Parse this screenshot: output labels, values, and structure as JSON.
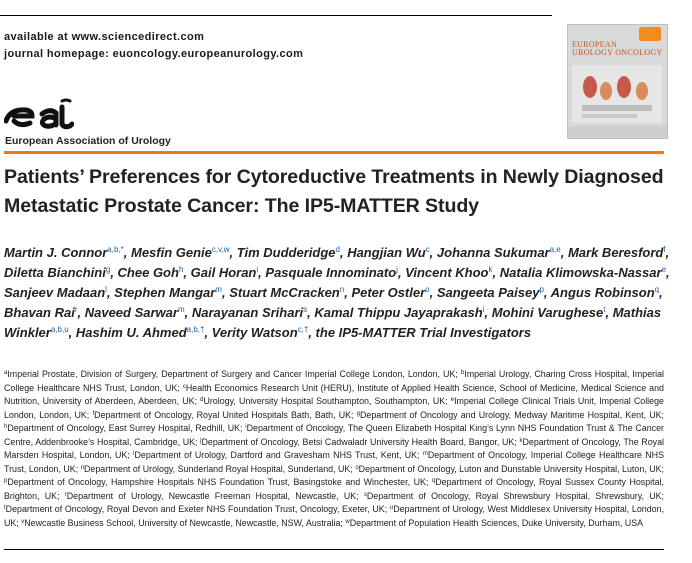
{
  "header": {
    "available": "available at www.sciencedirect.com",
    "homepage": "journal homepage: euoncology.europeanurology.com"
  },
  "society": {
    "logo_icon": "eau-logo",
    "name": "European Association of Urology"
  },
  "cover": {
    "title_line1": "EUROPEAN",
    "title_line2": "UROLOGY ONCOLOGY"
  },
  "title": "Patients’ Preferences for Cytoreductive Treatments in Newly Diagnosed Metastatic Prostate Cancer: The IP5-MATTER Study",
  "authors": [
    {
      "name": "Martin J. Connor",
      "sup": "a,b,*",
      "sep": ", "
    },
    {
      "name": "Mesfin Genie",
      "sup": "c,v,w",
      "sep": ", "
    },
    {
      "name": "Tim Dudderidge",
      "sup": "d",
      "sep": ", "
    },
    {
      "name": "Hangjian Wu",
      "sup": "c",
      "sep": ", "
    },
    {
      "name": "Johanna Sukumar",
      "sup": "a,e",
      "sep": ", "
    },
    {
      "name": "Mark Beresford",
      "sup": "f",
      "sep": ", "
    },
    {
      "name": "Diletta Bianchini",
      "sup": "g",
      "sep": ", "
    },
    {
      "name": "Chee Goh",
      "sup": "h",
      "sep": ", "
    },
    {
      "name": "Gail Horan",
      "sup": "i",
      "sep": ", "
    },
    {
      "name": "Pasquale Innominato",
      "sup": "j",
      "sep": ", "
    },
    {
      "name": "Vincent Khoo",
      "sup": "k",
      "sep": ", "
    },
    {
      "name": "Natalia Klimowska-Nassar",
      "sup": "e",
      "sep": ", "
    },
    {
      "name": "Sanjeev Madaan",
      "sup": "l",
      "sep": ", "
    },
    {
      "name": "Stephen Mangar",
      "sup": "m",
      "sep": ", "
    },
    {
      "name": "Stuart McCracken",
      "sup": "n",
      "sep": ", "
    },
    {
      "name": "Peter Ostler",
      "sup": "o",
      "sep": ", "
    },
    {
      "name": "Sangeeta Paisey",
      "sup": "p",
      "sep": ", "
    },
    {
      "name": "Angus Robinson",
      "sup": "q",
      "sep": ", "
    },
    {
      "name": "Bhavan Rai",
      "sup": "r",
      "sep": ", "
    },
    {
      "name": "Naveed Sarwar",
      "sup": "m",
      "sep": ", "
    },
    {
      "name": "Narayanan Srihari",
      "sup": "s",
      "sep": ", "
    },
    {
      "name": "Kamal Thippu Jayaprakash",
      "sup": "i",
      "sep": ", "
    },
    {
      "name": "Mohini Varughese",
      "sup": "t",
      "sep": ", "
    },
    {
      "name": "Mathias Winkler",
      "sup": "a,b,u",
      "sep": ", "
    },
    {
      "name": "Hashim U. Ahmed",
      "sup": "a,b,†",
      "sep": ", "
    },
    {
      "name": "Verity Watson",
      "sup": "c,†",
      "sep": ", "
    },
    {
      "name": "the IP5-MATTER Trial Investigators",
      "sup": "",
      "sep": ""
    }
  ],
  "affiliations": [
    {
      "sup": "a",
      "text": "Imperial Prostate, Division of Surgery, Department of Surgery and Cancer Imperial College London, London, UK; "
    },
    {
      "sup": "b",
      "text": "Imperial Urology, Charing Cross Hospital, Imperial College Healthcare NHS Trust, London, UK; "
    },
    {
      "sup": "c",
      "text": "Health Economics Research Unit (HERU), Institute of Applied Health Science, School of Medicine, Medical Science and Nutrition, University of Aberdeen, Aberdeen, UK; "
    },
    {
      "sup": "d",
      "text": "Urology, University Hospital Southampton, Southampton, UK; "
    },
    {
      "sup": "e",
      "text": "Imperial College Clinical Trials Unit, Imperial College London, London, UK; "
    },
    {
      "sup": "f",
      "text": "Department of Oncology, Royal United Hospitals Bath, Bath, UK; "
    },
    {
      "sup": "g",
      "text": "Department of Oncology and Urology, Medway Maritime Hospital, Kent, UK; "
    },
    {
      "sup": "h",
      "text": "Department of Oncology, East Surrey Hospital, Redhill, UK; "
    },
    {
      "sup": "i",
      "text": "Department of Oncology, The Queen Elizabeth Hospital King’s Lynn NHS Foundation Trust & The Cancer Centre, Addenbrooke’s Hospital, Cambridge, UK; "
    },
    {
      "sup": "j",
      "text": "Department of Oncology, Betsi Cadwaladr University Health Board, Bangor, UK; "
    },
    {
      "sup": "k",
      "text": "Department of Oncology, The Royal Marsden Hospital, London, UK; "
    },
    {
      "sup": "l",
      "text": "Department of Urology, Dartford and Gravesham NHS Trust, Kent, UK; "
    },
    {
      "sup": "m",
      "text": "Department of Oncology, Imperial College Healthcare NHS Trust, London, UK; "
    },
    {
      "sup": "n",
      "text": "Department of Urology, Sunderland Royal Hospital, Sunderland, UK; "
    },
    {
      "sup": "o",
      "text": "Department of Oncology, Luton and Dunstable University Hospital, Luton, UK; "
    },
    {
      "sup": "p",
      "text": "Department of Oncology, Hampshire Hospitals NHS Foundation Trust, Basingstoke and Winchester, UK; "
    },
    {
      "sup": "q",
      "text": "Department of Oncology, Royal Sussex County Hospital, Brighton, UK; "
    },
    {
      "sup": "r",
      "text": "Department of Urology, Newcastle Freeman Hospital, Newcastle, UK; "
    },
    {
      "sup": "s",
      "text": "Department of Oncology, Royal Shrewsbury Hospital, Shrewsbury, UK; "
    },
    {
      "sup": "t",
      "text": "Department of Oncology, Royal Devon and Exeter NHS Foundation Trust, Oncology, Exeter, UK; "
    },
    {
      "sup": "u",
      "text": "Department of Urology, West Middlesex University Hospital, London, UK; "
    },
    {
      "sup": "v",
      "text": "Newcastle Business School, University of Newcastle, Newcastle, NSW, Australia; "
    },
    {
      "sup": "w",
      "text": "Department of Population Health Sciences, Duke University, Durham, USA"
    }
  ],
  "colors": {
    "accent": "#e87b1e",
    "link": "#1f5faa",
    "text": "#222222"
  }
}
